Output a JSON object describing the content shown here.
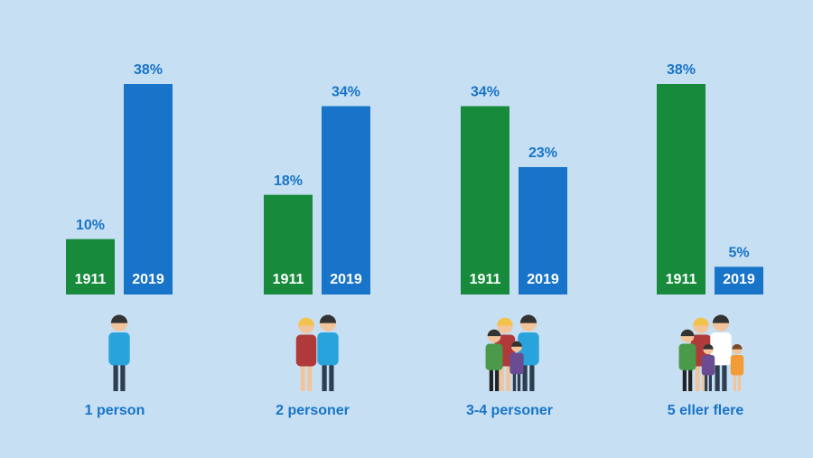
{
  "chart_data": {
    "type": "bar",
    "categories": [
      "1 person",
      "2 personer",
      "3-4 personer",
      "5 eller flere"
    ],
    "series": [
      {
        "name": "1911",
        "color": "#178a3b",
        "values": [
          10,
          18,
          34,
          38
        ],
        "value_labels": [
          "10%",
          "18%",
          "34%",
          "38%"
        ]
      },
      {
        "name": "2019",
        "color": "#1874c8",
        "values": [
          38,
          34,
          23,
          5
        ],
        "value_labels": [
          "38%",
          "34%",
          "23%",
          "5%"
        ]
      }
    ]
  }
}
